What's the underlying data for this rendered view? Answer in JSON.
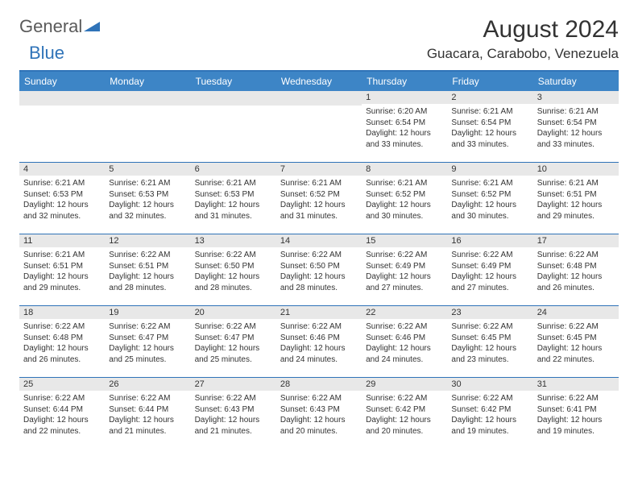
{
  "logo": {
    "word1": "General",
    "word2": "Blue"
  },
  "title": "August 2024",
  "location": "Guacara, Carabobo, Venezuela",
  "colors": {
    "header_bg": "#3d85c6",
    "border": "#2f73b8",
    "daynum_bg": "#e8e8e8",
    "text": "#333333",
    "logo_gray": "#5a5a5a",
    "logo_blue": "#2f73b8"
  },
  "weekdays": [
    "Sunday",
    "Monday",
    "Tuesday",
    "Wednesday",
    "Thursday",
    "Friday",
    "Saturday"
  ],
  "weeks": [
    [
      null,
      null,
      null,
      null,
      {
        "n": "1",
        "sunrise": "6:20 AM",
        "sunset": "6:54 PM",
        "dl": "12 hours and 33 minutes."
      },
      {
        "n": "2",
        "sunrise": "6:21 AM",
        "sunset": "6:54 PM",
        "dl": "12 hours and 33 minutes."
      },
      {
        "n": "3",
        "sunrise": "6:21 AM",
        "sunset": "6:54 PM",
        "dl": "12 hours and 33 minutes."
      }
    ],
    [
      {
        "n": "4",
        "sunrise": "6:21 AM",
        "sunset": "6:53 PM",
        "dl": "12 hours and 32 minutes."
      },
      {
        "n": "5",
        "sunrise": "6:21 AM",
        "sunset": "6:53 PM",
        "dl": "12 hours and 32 minutes."
      },
      {
        "n": "6",
        "sunrise": "6:21 AM",
        "sunset": "6:53 PM",
        "dl": "12 hours and 31 minutes."
      },
      {
        "n": "7",
        "sunrise": "6:21 AM",
        "sunset": "6:52 PM",
        "dl": "12 hours and 31 minutes."
      },
      {
        "n": "8",
        "sunrise": "6:21 AM",
        "sunset": "6:52 PM",
        "dl": "12 hours and 30 minutes."
      },
      {
        "n": "9",
        "sunrise": "6:21 AM",
        "sunset": "6:52 PM",
        "dl": "12 hours and 30 minutes."
      },
      {
        "n": "10",
        "sunrise": "6:21 AM",
        "sunset": "6:51 PM",
        "dl": "12 hours and 29 minutes."
      }
    ],
    [
      {
        "n": "11",
        "sunrise": "6:21 AM",
        "sunset": "6:51 PM",
        "dl": "12 hours and 29 minutes."
      },
      {
        "n": "12",
        "sunrise": "6:22 AM",
        "sunset": "6:51 PM",
        "dl": "12 hours and 28 minutes."
      },
      {
        "n": "13",
        "sunrise": "6:22 AM",
        "sunset": "6:50 PM",
        "dl": "12 hours and 28 minutes."
      },
      {
        "n": "14",
        "sunrise": "6:22 AM",
        "sunset": "6:50 PM",
        "dl": "12 hours and 28 minutes."
      },
      {
        "n": "15",
        "sunrise": "6:22 AM",
        "sunset": "6:49 PM",
        "dl": "12 hours and 27 minutes."
      },
      {
        "n": "16",
        "sunrise": "6:22 AM",
        "sunset": "6:49 PM",
        "dl": "12 hours and 27 minutes."
      },
      {
        "n": "17",
        "sunrise": "6:22 AM",
        "sunset": "6:48 PM",
        "dl": "12 hours and 26 minutes."
      }
    ],
    [
      {
        "n": "18",
        "sunrise": "6:22 AM",
        "sunset": "6:48 PM",
        "dl": "12 hours and 26 minutes."
      },
      {
        "n": "19",
        "sunrise": "6:22 AM",
        "sunset": "6:47 PM",
        "dl": "12 hours and 25 minutes."
      },
      {
        "n": "20",
        "sunrise": "6:22 AM",
        "sunset": "6:47 PM",
        "dl": "12 hours and 25 minutes."
      },
      {
        "n": "21",
        "sunrise": "6:22 AM",
        "sunset": "6:46 PM",
        "dl": "12 hours and 24 minutes."
      },
      {
        "n": "22",
        "sunrise": "6:22 AM",
        "sunset": "6:46 PM",
        "dl": "12 hours and 24 minutes."
      },
      {
        "n": "23",
        "sunrise": "6:22 AM",
        "sunset": "6:45 PM",
        "dl": "12 hours and 23 minutes."
      },
      {
        "n": "24",
        "sunrise": "6:22 AM",
        "sunset": "6:45 PM",
        "dl": "12 hours and 22 minutes."
      }
    ],
    [
      {
        "n": "25",
        "sunrise": "6:22 AM",
        "sunset": "6:44 PM",
        "dl": "12 hours and 22 minutes."
      },
      {
        "n": "26",
        "sunrise": "6:22 AM",
        "sunset": "6:44 PM",
        "dl": "12 hours and 21 minutes."
      },
      {
        "n": "27",
        "sunrise": "6:22 AM",
        "sunset": "6:43 PM",
        "dl": "12 hours and 21 minutes."
      },
      {
        "n": "28",
        "sunrise": "6:22 AM",
        "sunset": "6:43 PM",
        "dl": "12 hours and 20 minutes."
      },
      {
        "n": "29",
        "sunrise": "6:22 AM",
        "sunset": "6:42 PM",
        "dl": "12 hours and 20 minutes."
      },
      {
        "n": "30",
        "sunrise": "6:22 AM",
        "sunset": "6:42 PM",
        "dl": "12 hours and 19 minutes."
      },
      {
        "n": "31",
        "sunrise": "6:22 AM",
        "sunset": "6:41 PM",
        "dl": "12 hours and 19 minutes."
      }
    ]
  ],
  "labels": {
    "sunrise": "Sunrise:",
    "sunset": "Sunset:",
    "daylight": "Daylight:"
  }
}
